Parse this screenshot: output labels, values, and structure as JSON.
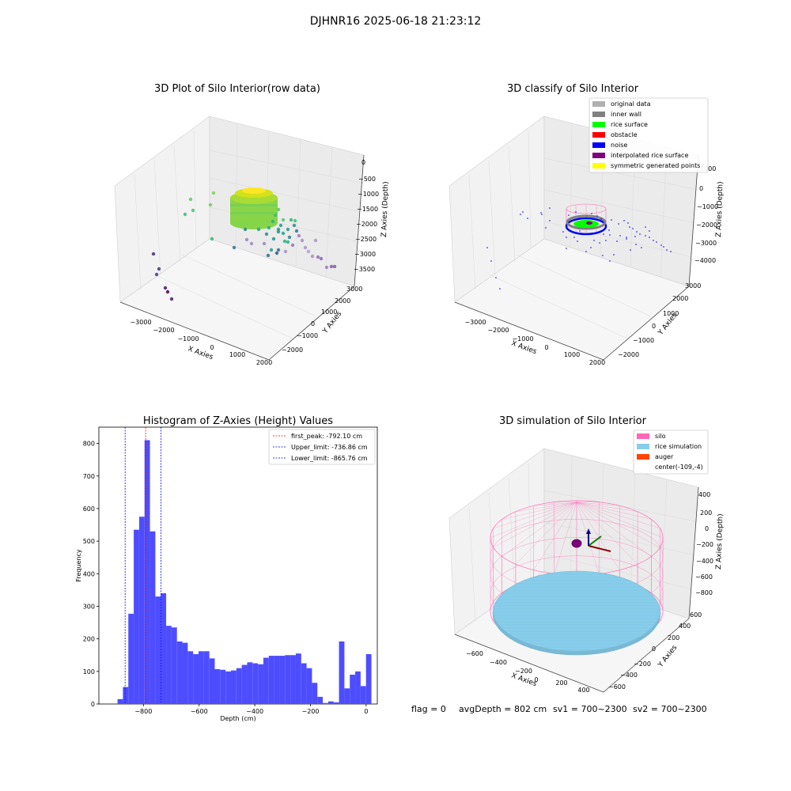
{
  "suptitle": "DJHNR16 2025-06-18 21:23:12",
  "colors": {
    "pink": "#ff69b4",
    "light_blue": "#87ceeb",
    "orange": "#ff4500",
    "green": "#00ff00",
    "blue": "#0000ff",
    "red": "#ff0000",
    "purple": "#800080",
    "gray": "#808080",
    "lightgray": "#b0b0b0",
    "yellow": "#ffff00",
    "hist_bar": "#4d4dff"
  },
  "footer": {
    "flag": "flag = 0",
    "avg_depth": "avgDepth = 802 cm",
    "sv1": "sv1 = 700~2300",
    "sv2": "sv2 = 700~2300"
  },
  "chart_data": [
    {
      "type": "scatter",
      "title": "3D Plot of Silo Interior(row data)",
      "xlabel": "X Axies",
      "ylabel": "Y Axies",
      "zlabel": "Z Axies (Depth)",
      "x_ticks": [
        "−3000",
        "−2000",
        "−1000",
        "0",
        "1000",
        "2000"
      ],
      "y_ticks": [
        "−2000",
        "−1000",
        "0",
        "1000",
        "2000",
        "3000"
      ],
      "z_ticks": [
        "0",
        "−500",
        "−1000",
        "−1500",
        "−2000",
        "−2500",
        "−3000",
        "−3500"
      ],
      "colormap": "viridis by depth"
    },
    {
      "type": "scatter",
      "title": "3D classify of Silo Interior",
      "xlabel": "X Axies",
      "ylabel": "Y Axies",
      "zlabel": "Z Axies (Depth)",
      "x_ticks": [
        "−3000",
        "−2000",
        "−1000",
        "0",
        "1000",
        "2000"
      ],
      "y_ticks": [
        "−2000",
        "−1000",
        "0",
        "1000",
        "2000",
        "3000"
      ],
      "z_ticks": [
        "1000",
        "0",
        "−1000",
        "−2000",
        "−3000",
        "−4000"
      ],
      "legend": [
        {
          "label": "original data",
          "color": "#b0b0b0"
        },
        {
          "label": "inner wall",
          "color": "#808080"
        },
        {
          "label": "rice surface",
          "color": "#00ff00"
        },
        {
          "label": "obstacle",
          "color": "#ff0000"
        },
        {
          "label": "noise",
          "color": "#0000ff"
        },
        {
          "label": "interpolated rice surface",
          "color": "#800080"
        },
        {
          "label": "symmetric generated points",
          "color": "#ffff00"
        }
      ],
      "legend_position": "top-right"
    },
    {
      "type": "bar",
      "title": "Histogram of Z-Axies (Height) Values",
      "xlabel": "Depth (cm)",
      "ylabel": "Frequency",
      "xlim": [
        -960,
        40
      ],
      "ylim": [
        0,
        850
      ],
      "x_ticks": [
        -800,
        -600,
        -400,
        -200,
        0
      ],
      "x_tick_labels": [
        "−800",
        "−600",
        "−400",
        "−200",
        "0"
      ],
      "y_ticks": [
        0,
        100,
        200,
        300,
        400,
        500,
        600,
        700,
        800
      ],
      "bin_start": -893,
      "bin_width": 19.4,
      "values": [
        15,
        52,
        277,
        535,
        575,
        810,
        530,
        330,
        340,
        240,
        235,
        192,
        188,
        162,
        153,
        162,
        162,
        140,
        107,
        105,
        100,
        103,
        110,
        120,
        128,
        125,
        122,
        142,
        148,
        148,
        148,
        150,
        150,
        155,
        125,
        110,
        65,
        22,
        3,
        8,
        5,
        192,
        48,
        90,
        100,
        55,
        153
      ],
      "lines": [
        {
          "label": "first_peak: -792.10 cm",
          "x": -792.1,
          "color": "#ff0000"
        },
        {
          "label": "Upper_limit: -736.86 cm",
          "x": -736.86,
          "color": "#0000ff"
        },
        {
          "label": "Lower_limit: -865.76 cm",
          "x": -865.76,
          "color": "#0000ff"
        }
      ],
      "legend_position": "top-right"
    },
    {
      "type": "scatter",
      "title": "3D simulation of Silo Interior",
      "xlabel": "X Axies",
      "ylabel": "Y Axies",
      "zlabel": "Z Axies (Depth)",
      "x_ticks": [
        "−600",
        "−400",
        "−200",
        "0",
        "200",
        "400"
      ],
      "y_ticks": [
        "−600",
        "−400",
        "−200",
        "0",
        "200",
        "400",
        "600"
      ],
      "z_ticks": [
        "400",
        "200",
        "0",
        "−200",
        "−400",
        "−600",
        "−800"
      ],
      "legend": [
        {
          "label": "silo",
          "color": "#ff69b4"
        },
        {
          "label": "rice simulation",
          "color": "#87ceeb"
        },
        {
          "label": "auger",
          "color": "#ff4500"
        },
        {
          "label": "center(-109,-4)",
          "color": ""
        }
      ],
      "legend_position": "top-right"
    }
  ]
}
